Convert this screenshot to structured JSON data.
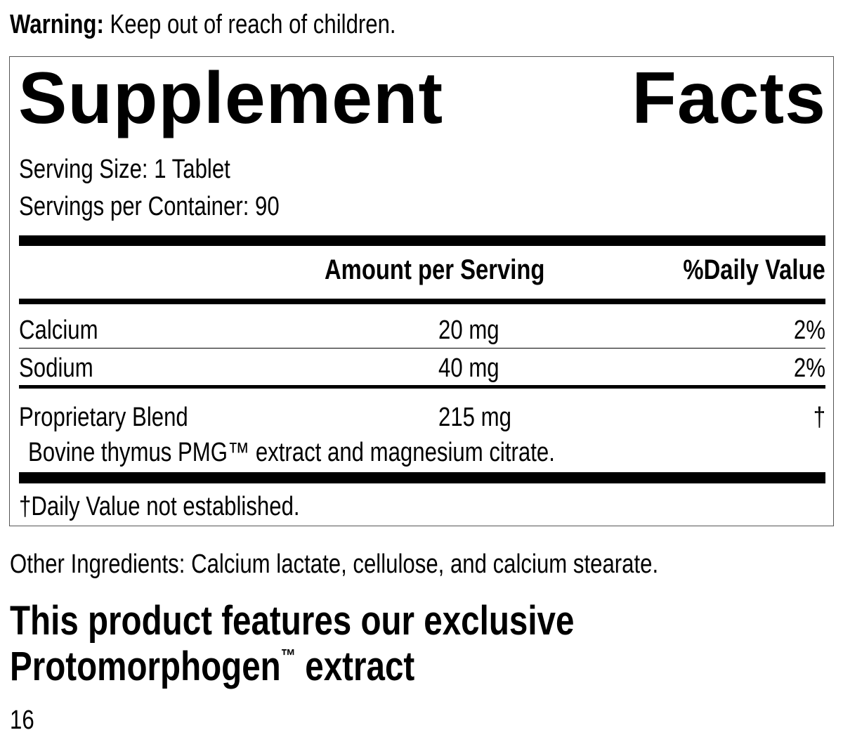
{
  "warning": {
    "label": "Warning:",
    "text": "Keep out of reach of children."
  },
  "facts": {
    "title_left": "Supplement",
    "title_right": "Facts",
    "serving_size": "Serving Size: 1 Tablet",
    "servings_per_container": "Servings per Container: 90",
    "header_amount": "Amount per Serving",
    "header_dv": "%Daily Value",
    "rows": [
      {
        "name": "Calcium",
        "amount": "20 mg",
        "dv": "2%"
      },
      {
        "name": "Sodium",
        "amount": "40 mg",
        "dv": "2%"
      },
      {
        "name": "Proprietary Blend",
        "amount": "215 mg",
        "dv": "†",
        "detail": "Bovine thymus PMG™ extract and magnesium citrate."
      }
    ],
    "footnote": "†Daily Value not established."
  },
  "other_ingredients": "Other Ingredients: Calcium lactate, cellulose, and calcium stearate.",
  "feature": {
    "line1": "This product features our exclusive",
    "line2_main": "Protomorphogen",
    "line2_tm": "™",
    "line2_end": " extract"
  },
  "page_number": "16"
}
